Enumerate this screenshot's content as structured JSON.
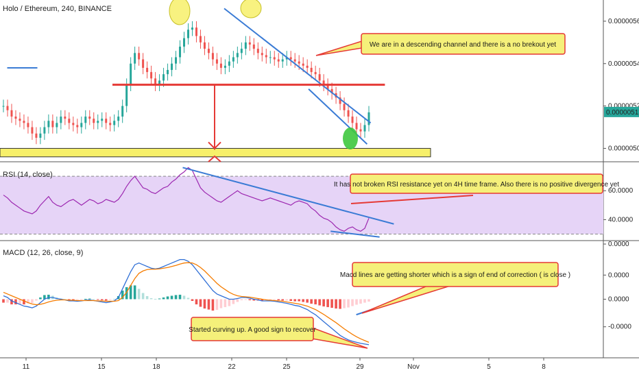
{
  "header": {
    "title": "Holo / Ethereum, 240, BINANCE"
  },
  "colors": {
    "up": "#26a69a",
    "down": "#ef5350",
    "annotation_line": "#e53935",
    "trend_line": "#3a7bd5",
    "highlight_yellow": "#f7f06a",
    "highlight_green": "#3ec83e",
    "rsi_band": "#e6d4f7",
    "macd_line": "#2f6fd6",
    "signal_line": "#f57c00",
    "callout_fill": "#f5f07a",
    "callout_border": "#e53935"
  },
  "chart_data": [
    {
      "type": "candlestick",
      "name": "price",
      "title": "Holo / Ethereum, 240, BINANCE",
      "ylim": [
        4.94e-06,
        5.7e-06
      ],
      "y_ticks": [
        {
          "value": 5.6e-06,
          "label": "0.00000560"
        },
        {
          "value": 5.4e-06,
          "label": "0.00000540"
        },
        {
          "value": 5.2e-06,
          "label": "0.00000520"
        },
        {
          "value": 5e-06,
          "label": "0.00000500"
        }
      ],
      "last_price": {
        "value": 5.17e-06,
        "label": "0.00000517"
      },
      "x_ticks": [
        "11",
        "15",
        "18",
        "22",
        "25",
        "29",
        "Nov",
        "5",
        "8"
      ],
      "close_values": [
        5.2e-06,
        5.18e-06,
        5.15e-06,
        5.14e-06,
        5.13e-06,
        5.12e-06,
        5.1e-06,
        5.07e-06,
        5.05e-06,
        5.07e-06,
        5.1e-06,
        5.13e-06,
        5.1e-06,
        5.12e-06,
        5.15e-06,
        5.14e-06,
        5.12e-06,
        5.11e-06,
        5.1e-06,
        5.12e-06,
        5.15e-06,
        5.14e-06,
        5.12e-06,
        5.13e-06,
        5.14e-06,
        5.12e-06,
        5.11e-06,
        5.13e-06,
        5.15e-06,
        5.2e-06,
        5.3e-06,
        5.4e-06,
        5.45e-06,
        5.42e-06,
        5.38e-06,
        5.36e-06,
        5.33e-06,
        5.3e-06,
        5.32e-06,
        5.35e-06,
        5.37e-06,
        5.4e-06,
        5.43e-06,
        5.48e-06,
        5.52e-06,
        5.56e-06,
        5.57e-06,
        5.53e-06,
        5.5e-06,
        5.47e-06,
        5.45e-06,
        5.42e-06,
        5.4e-06,
        5.38e-06,
        5.39e-06,
        5.41e-06,
        5.43e-06,
        5.45e-06,
        5.47e-06,
        5.5e-06,
        5.49e-06,
        5.47e-06,
        5.45e-06,
        5.44e-06,
        5.43e-06,
        5.43e-06,
        5.42e-06,
        5.41e-06,
        5.42e-06,
        5.43e-06,
        5.42e-06,
        5.41e-06,
        5.4e-06,
        5.39e-06,
        5.38e-06,
        5.36e-06,
        5.35e-06,
        5.32e-06,
        5.3e-06,
        5.28e-06,
        5.26e-06,
        5.24e-06,
        5.21e-06,
        5.18e-06,
        5.15e-06,
        5.12e-06,
        5.09e-06,
        5.08e-06,
        5.11e-06,
        5.17e-06
      ],
      "annotations": [
        {
          "kind": "trendline",
          "label": "descending channel upper",
          "points": [
            [
              21.6,
              5.66e-06
            ],
            [
              29.6,
              5.12e-06
            ]
          ]
        },
        {
          "kind": "trendline",
          "label": "descending channel lower",
          "points": [
            [
              26.2,
              5.28e-06
            ],
            [
              29.4,
              5.02e-06
            ]
          ]
        },
        {
          "kind": "hline",
          "label": "resistance",
          "value": 5.3e-06,
          "from": 15.6,
          "to": 30.4
        },
        {
          "kind": "support_zone",
          "from_value": 4.96e-06,
          "to_value": 5e-06
        },
        {
          "kind": "short_line",
          "value": 5.38e-06,
          "from": 10.0,
          "to": 11.6
        }
      ],
      "callouts": [
        {
          "text": "We are in a descending channel and there is a no brekout yet"
        }
      ]
    },
    {
      "type": "line",
      "name": "rsi",
      "title": "RSI (14, close)",
      "ylim": [
        26,
        80
      ],
      "y_ticks": [
        {
          "value": 60,
          "label": "60.0000"
        },
        {
          "value": 40,
          "label": "40.0000"
        }
      ],
      "bands": [
        70,
        30
      ],
      "values": [
        57,
        55,
        52,
        50,
        48,
        46,
        45,
        44,
        46,
        50,
        53,
        56,
        52,
        50,
        49,
        51,
        53,
        54,
        52,
        50,
        52,
        54,
        53,
        51,
        52,
        54,
        53,
        52,
        54,
        58,
        63,
        67,
        70,
        66,
        62,
        61,
        59,
        58,
        60,
        62,
        63,
        66,
        68,
        71,
        73,
        76,
        74,
        68,
        62,
        59,
        57,
        55,
        53,
        52,
        54,
        56,
        58,
        60,
        58,
        57,
        56,
        55,
        54,
        53,
        54,
        55,
        54,
        53,
        52,
        51,
        50,
        52,
        53,
        52,
        51,
        48,
        46,
        43,
        41,
        40,
        38,
        35,
        33,
        32,
        34,
        35,
        33,
        32,
        34,
        41
      ],
      "annotations": [
        {
          "kind": "trendline",
          "label": "RSI resistance",
          "points": [
            [
              19.4,
              76
            ],
            [
              30.9,
              37
            ]
          ]
        },
        {
          "kind": "trendline",
          "label": "RSI support",
          "points": [
            [
              27.4,
              32
            ],
            [
              30.1,
              28
            ]
          ]
        }
      ],
      "callouts": [
        {
          "text": "It has not broken RSI resistance yet on 4H time frame. Also there is no positive divergence yet"
        }
      ]
    },
    {
      "type": "line",
      "name": "macd",
      "title": "MACD (12, 26, close, 9)",
      "ylim": [
        -1.7,
        1.7
      ],
      "y_ticks": [
        {
          "value": 1.6,
          "label": "0.0000"
        },
        {
          "value": 0.7,
          "label": "0.0000"
        },
        {
          "value": 0.0,
          "label": "0.0000"
        },
        {
          "value": -0.8,
          "label": "-0.0000"
        }
      ],
      "macd_values": [
        0.1,
        0.05,
        -0.05,
        -0.1,
        -0.15,
        -0.2,
        -0.22,
        -0.25,
        -0.2,
        -0.1,
        0.0,
        0.05,
        0.05,
        0.02,
        0.0,
        -0.02,
        -0.05,
        -0.05,
        -0.06,
        -0.05,
        -0.03,
        -0.02,
        -0.04,
        -0.06,
        -0.08,
        -0.1,
        -0.08,
        -0.05,
        0.05,
        0.3,
        0.55,
        0.8,
        1.0,
        1.05,
        1.0,
        0.95,
        0.9,
        0.88,
        0.9,
        0.95,
        1.0,
        1.05,
        1.1,
        1.15,
        1.15,
        1.1,
        1.0,
        0.85,
        0.7,
        0.55,
        0.4,
        0.25,
        0.15,
        0.1,
        0.05,
        0.0,
        0.0,
        0.02,
        0.05,
        0.05,
        0.03,
        0.0,
        -0.02,
        -0.05,
        -0.05,
        -0.05,
        -0.06,
        -0.08,
        -0.1,
        -0.12,
        -0.15,
        -0.18,
        -0.2,
        -0.25,
        -0.3,
        -0.38,
        -0.45,
        -0.55,
        -0.65,
        -0.75,
        -0.85,
        -0.95,
        -1.05,
        -1.12,
        -1.18,
        -1.22,
        -1.25,
        -1.28,
        -1.3,
        -1.32
      ],
      "signal_values": [
        0.2,
        0.15,
        0.1,
        0.05,
        0.0,
        -0.05,
        -0.1,
        -0.14,
        -0.16,
        -0.15,
        -0.12,
        -0.08,
        -0.05,
        -0.03,
        -0.02,
        -0.02,
        -0.03,
        -0.03,
        -0.04,
        -0.04,
        -0.04,
        -0.04,
        -0.04,
        -0.05,
        -0.05,
        -0.06,
        -0.06,
        -0.06,
        -0.04,
        0.05,
        0.2,
        0.4,
        0.6,
        0.75,
        0.82,
        0.86,
        0.87,
        0.87,
        0.88,
        0.9,
        0.92,
        0.95,
        0.98,
        1.02,
        1.05,
        1.06,
        1.05,
        1.0,
        0.92,
        0.82,
        0.7,
        0.58,
        0.46,
        0.36,
        0.28,
        0.2,
        0.14,
        0.1,
        0.08,
        0.07,
        0.06,
        0.04,
        0.02,
        0.0,
        -0.02,
        -0.03,
        -0.04,
        -0.05,
        -0.06,
        -0.08,
        -0.1,
        -0.12,
        -0.14,
        -0.17,
        -0.2,
        -0.25,
        -0.3,
        -0.37,
        -0.44,
        -0.52,
        -0.6,
        -0.68,
        -0.77,
        -0.86,
        -0.94,
        -1.02,
        -1.09,
        -1.15,
        -1.2,
        -1.25
      ],
      "annotations": [
        {
          "kind": "trendline",
          "label": "histogram shortening",
          "points": [
            [
              28.8,
              -0.45
            ],
            [
              30.8,
              -0.1
            ]
          ]
        }
      ],
      "callouts": [
        {
          "text": "Macd lines are getting shorter which is a sign of end of correction ( is close )"
        },
        {
          "text": "Started curving up. A good sign to recover"
        }
      ]
    }
  ]
}
